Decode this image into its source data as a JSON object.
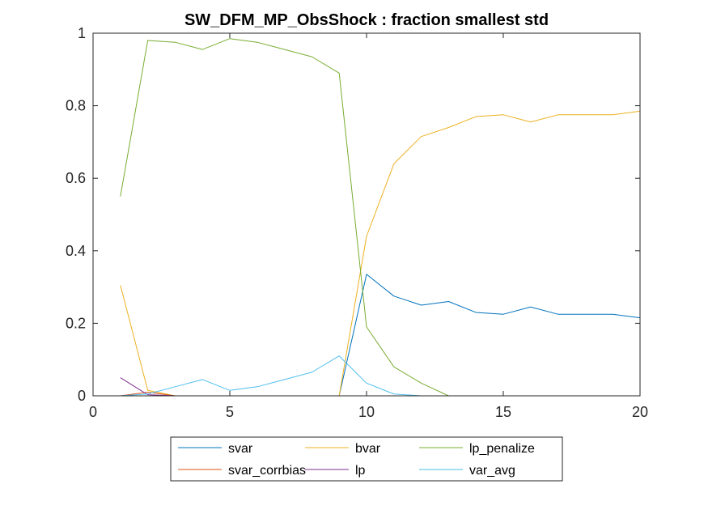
{
  "chart_data": {
    "type": "line",
    "title": "SW_DFM_MP_ObsShock : fraction smallest std",
    "xlabel": "",
    "ylabel": "",
    "xlim": [
      0,
      20
    ],
    "ylim": [
      0,
      1
    ],
    "xticks": [
      0,
      5,
      10,
      15,
      20
    ],
    "yticks": [
      0,
      0.2,
      0.4,
      0.6,
      0.8,
      1
    ],
    "xtick_labels": [
      "0",
      "5",
      "10",
      "15",
      "20"
    ],
    "ytick_labels": [
      "0",
      "0.2",
      "0.4",
      "0.6",
      "0.8",
      "1"
    ],
    "grid": false,
    "legend_placement": "below, 3 columns",
    "x": [
      1,
      2,
      3,
      4,
      5,
      6,
      7,
      8,
      9,
      10,
      11,
      12,
      13,
      14,
      15,
      16,
      17,
      18,
      19,
      20
    ],
    "series": [
      {
        "name": "svar",
        "color": "#0072BD",
        "values": [
          0,
          0,
          0,
          0,
          0,
          0,
          0,
          0,
          0,
          0.335,
          0.275,
          0.25,
          0.26,
          0.23,
          0.225,
          0.245,
          0.225,
          0.225,
          0.225,
          0.215
        ]
      },
      {
        "name": "bvar",
        "color": "#EDB120",
        "values": [
          0.305,
          0.015,
          0,
          0,
          0,
          0,
          0,
          0,
          0,
          0.44,
          0.64,
          0.715,
          0.74,
          0.77,
          0.775,
          0.755,
          0.775,
          0.775,
          0.775,
          0.785
        ]
      },
      {
        "name": "lp_penalize",
        "color": "#77AC30",
        "values": [
          0.55,
          0.98,
          0.975,
          0.955,
          0.985,
          0.975,
          0.955,
          0.935,
          0.89,
          0.19,
          0.08,
          0.035,
          0,
          0,
          0,
          0,
          0,
          0,
          0,
          0
        ]
      },
      {
        "name": "svar_corrbias",
        "color": "#D95319",
        "values": [
          0,
          0.01,
          0,
          0,
          0,
          0,
          0,
          0,
          0,
          0,
          0,
          0,
          0,
          0,
          0,
          0,
          0,
          0,
          0,
          0
        ]
      },
      {
        "name": "lp",
        "color": "#7E2F8E",
        "values": [
          0.05,
          0.003,
          0,
          0,
          0,
          0,
          0,
          0,
          0,
          0,
          0,
          0,
          0,
          0,
          0,
          0,
          0,
          0,
          0,
          0
        ]
      },
      {
        "name": "var_avg",
        "color": "#4DBEEE",
        "values": [
          0,
          0.005,
          0.025,
          0.045,
          0.015,
          0.025,
          0.045,
          0.065,
          0.11,
          0.035,
          0.005,
          0,
          0,
          0,
          0,
          0,
          0,
          0,
          0,
          0
        ]
      }
    ]
  }
}
